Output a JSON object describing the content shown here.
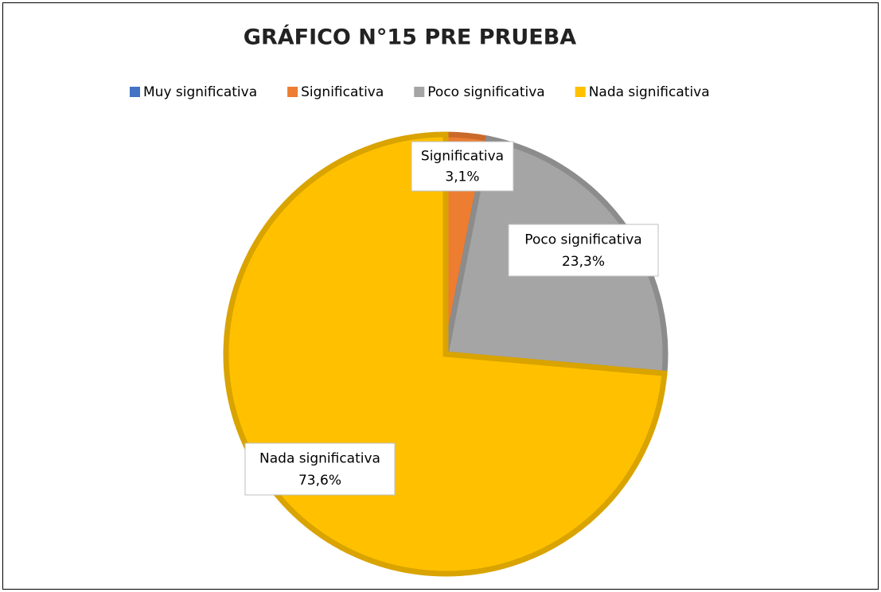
{
  "chart_data": {
    "type": "pie",
    "title": "GRÁFICO N°15 PRE PRUEBA",
    "categories": [
      "Muy significativa",
      "Significativa",
      "Poco significativa",
      "Nada significativa"
    ],
    "values": [
      0,
      3.1,
      23.3,
      73.6
    ],
    "value_labels": [
      null,
      "3,1%",
      "23,3%",
      "73,6%"
    ],
    "colors": [
      "#4472c4",
      "#ed7d31",
      "#a5a5a5",
      "#ffc000"
    ],
    "legend": "top"
  }
}
